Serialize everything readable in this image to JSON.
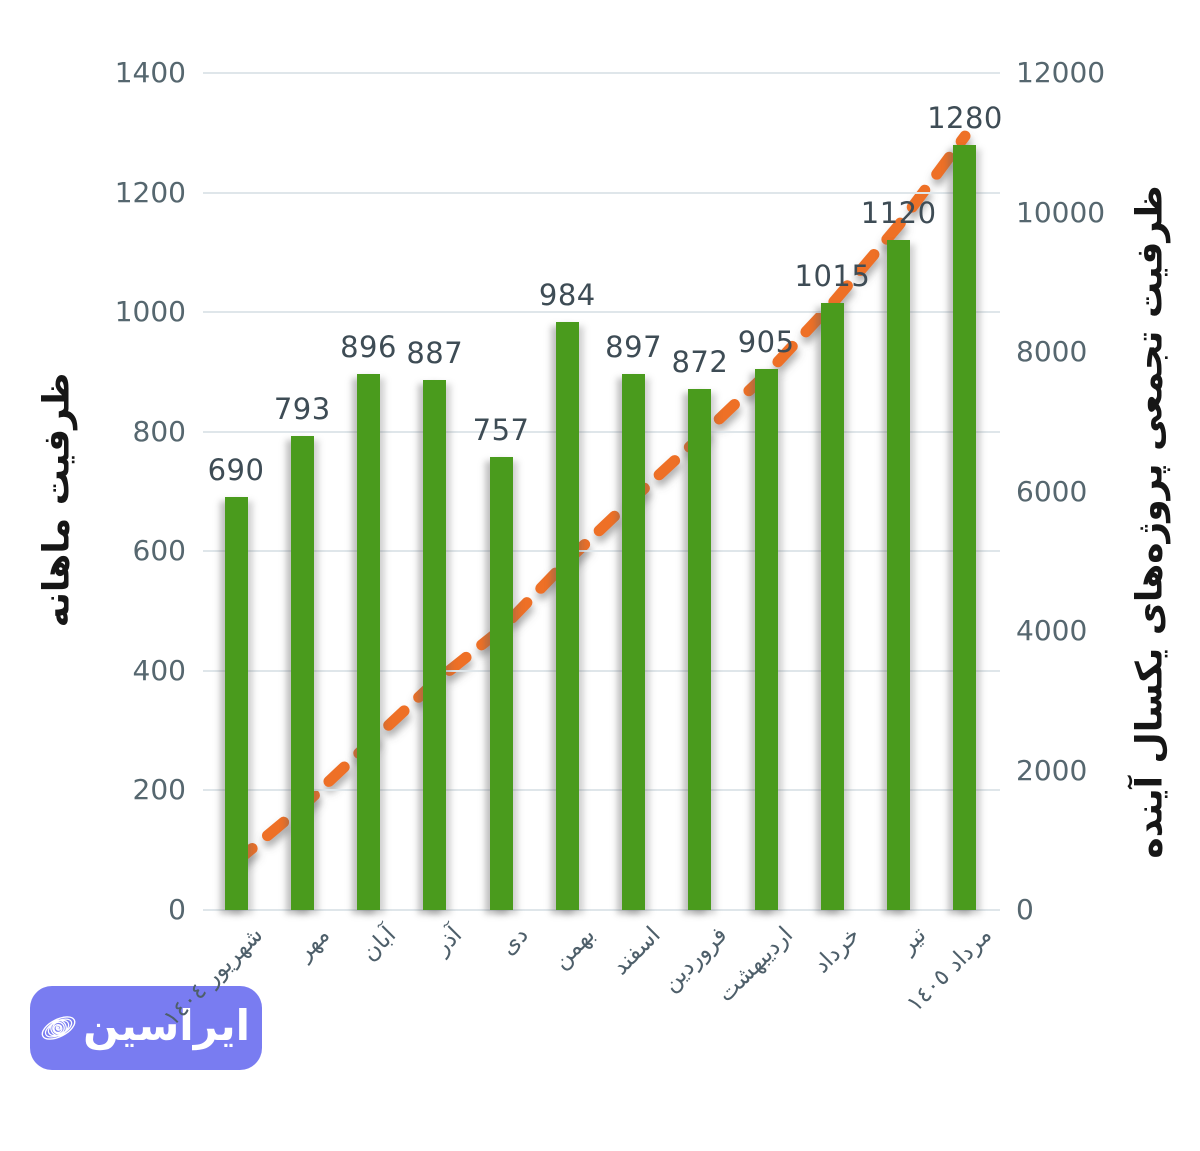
{
  "chart_data": {
    "type": "bar",
    "combo": "bar+line",
    "title": "",
    "categories": [
      "شهریور ١٤٠٤",
      "مهر",
      "آبان",
      "آذر",
      "دی",
      "بهمن",
      "اسفند",
      "فروردین",
      "اردیبهشت",
      "خرداد",
      "تیر",
      "مرداد ١٤٠٥"
    ],
    "series": [
      {
        "name": "ظرفیت ماهانه",
        "type": "bar",
        "axis": "left",
        "color": "#4a9b1d",
        "values": [
          690,
          793,
          896,
          887,
          757,
          984,
          897,
          872,
          905,
          1015,
          1120,
          1280
        ]
      },
      {
        "name": "ظرفیت تجمعی پروژه‌های یکسال آینده",
        "type": "line",
        "style": "dashed",
        "axis": "right",
        "color": "#ee7026",
        "values": [
          690,
          1483,
          2379,
          3266,
          4023,
          5007,
          5904,
          6776,
          7681,
          8696,
          9816,
          11096
        ]
      }
    ],
    "left_axis": {
      "title": "ظرفیت ماهانه",
      "min": 0,
      "max": 1400,
      "step": 200
    },
    "right_axis": {
      "title": "ظرفیت تجمعی پروژه‌های یکسال آینده",
      "min": 0,
      "max": 12000,
      "step": 2000
    },
    "grid": "horizontal",
    "legend": "none",
    "x_label_rotation_deg": -45
  },
  "watermark": {
    "text": "ایراسین",
    "bg_color": "#797cf1"
  }
}
